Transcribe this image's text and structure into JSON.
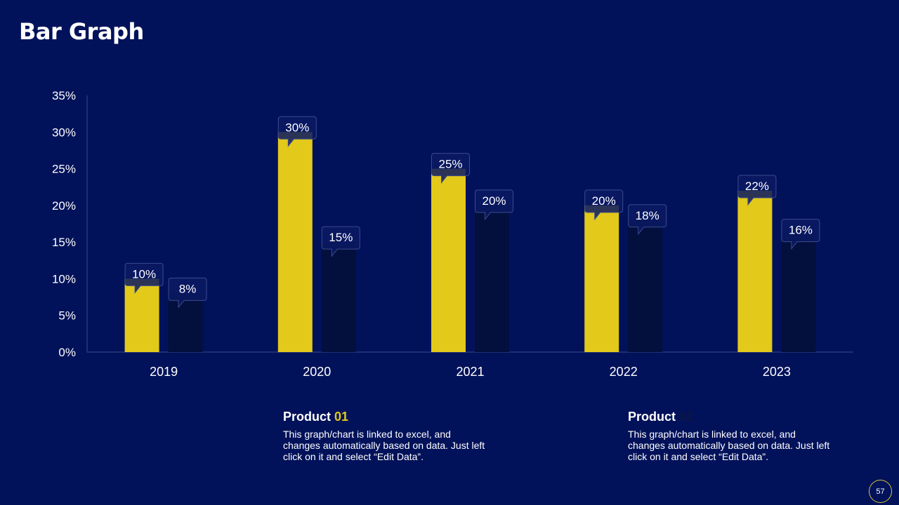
{
  "slide": {
    "title": "Bar Graph",
    "page_number": "57"
  },
  "colors": {
    "background": "#02125a",
    "product01": "#e2c91a",
    "product02": "#03103e",
    "callout_bg": "#0a1a63",
    "callout_border": "#3b4a8c"
  },
  "chart_data": {
    "type": "bar",
    "categories": [
      "2019",
      "2020",
      "2021",
      "2022",
      "2023"
    ],
    "series": [
      {
        "values": [
          10,
          30,
          25,
          20,
          22
        ],
        "labels": [
          "10%",
          "30%",
          "25%",
          "20%",
          "22%"
        ]
      },
      {
        "values": [
          8,
          15,
          20,
          18,
          16
        ],
        "labels": [
          "8%",
          "15%",
          "20%",
          "18%",
          "16%"
        ]
      }
    ],
    "yticks": [
      0,
      5,
      10,
      15,
      20,
      25,
      30,
      35
    ],
    "ytick_labels": [
      "0%",
      "5%",
      "10%",
      "15%",
      "20%",
      "25%",
      "30%",
      "35%"
    ],
    "ylim": [
      0,
      35
    ],
    "grid": false,
    "legend": "bottom"
  },
  "legend": [
    {
      "title": "Product",
      "number": "01",
      "desc": "This graph/chart is linked to excel, and changes automatically based on data. Just left click on it and select “Edit Data”."
    },
    {
      "title": "Product",
      "number": "02",
      "desc": "This graph/chart is linked to excel, and changes automatically based on data. Just left click on it and select “Edit Data”."
    }
  ]
}
